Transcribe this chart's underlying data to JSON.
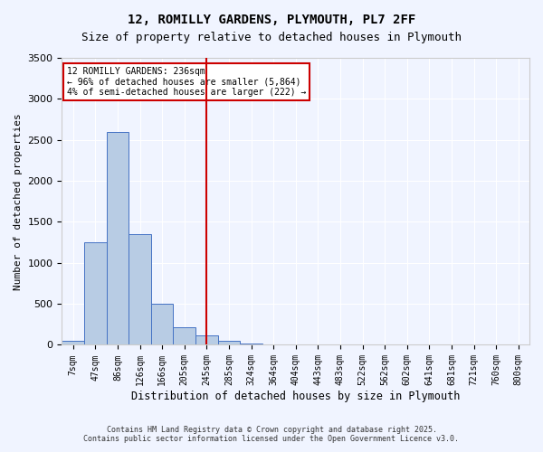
{
  "title_line1": "12, ROMILLY GARDENS, PLYMOUTH, PL7 2FF",
  "title_line2": "Size of property relative to detached houses in Plymouth",
  "xlabel": "Distribution of detached houses by size in Plymouth",
  "ylabel": "Number of detached properties",
  "bar_labels": [
    "7sqm",
    "47sqm",
    "86sqm",
    "126sqm",
    "166sqm",
    "205sqm",
    "245sqm",
    "285sqm",
    "324sqm",
    "364sqm",
    "404sqm",
    "443sqm",
    "483sqm",
    "522sqm",
    "562sqm",
    "602sqm",
    "641sqm",
    "681sqm",
    "721sqm",
    "760sqm",
    "800sqm"
  ],
  "bar_values": [
    50,
    1250,
    2600,
    1350,
    500,
    220,
    115,
    50,
    20,
    10,
    5,
    3,
    2,
    0,
    0,
    0,
    0,
    0,
    0,
    0,
    0
  ],
  "bar_color": "#b8cce4",
  "bar_edge_color": "#4472c4",
  "vline_x": 6,
  "vline_color": "#cc0000",
  "ylim": [
    0,
    3500
  ],
  "yticks": [
    0,
    500,
    1000,
    1500,
    2000,
    2500,
    3000,
    3500
  ],
  "annotation_title": "12 ROMILLY GARDENS: 236sqm",
  "annotation_line2": "← 96% of detached houses are smaller (5,864)",
  "annotation_line3": "4% of semi-detached houses are larger (222) →",
  "annotation_box_color": "#cc0000",
  "footer_line1": "Contains HM Land Registry data © Crown copyright and database right 2025.",
  "footer_line2": "Contains public sector information licensed under the Open Government Licence v3.0.",
  "background_color": "#f0f4ff",
  "grid_color": "#ffffff",
  "font_family": "monospace"
}
